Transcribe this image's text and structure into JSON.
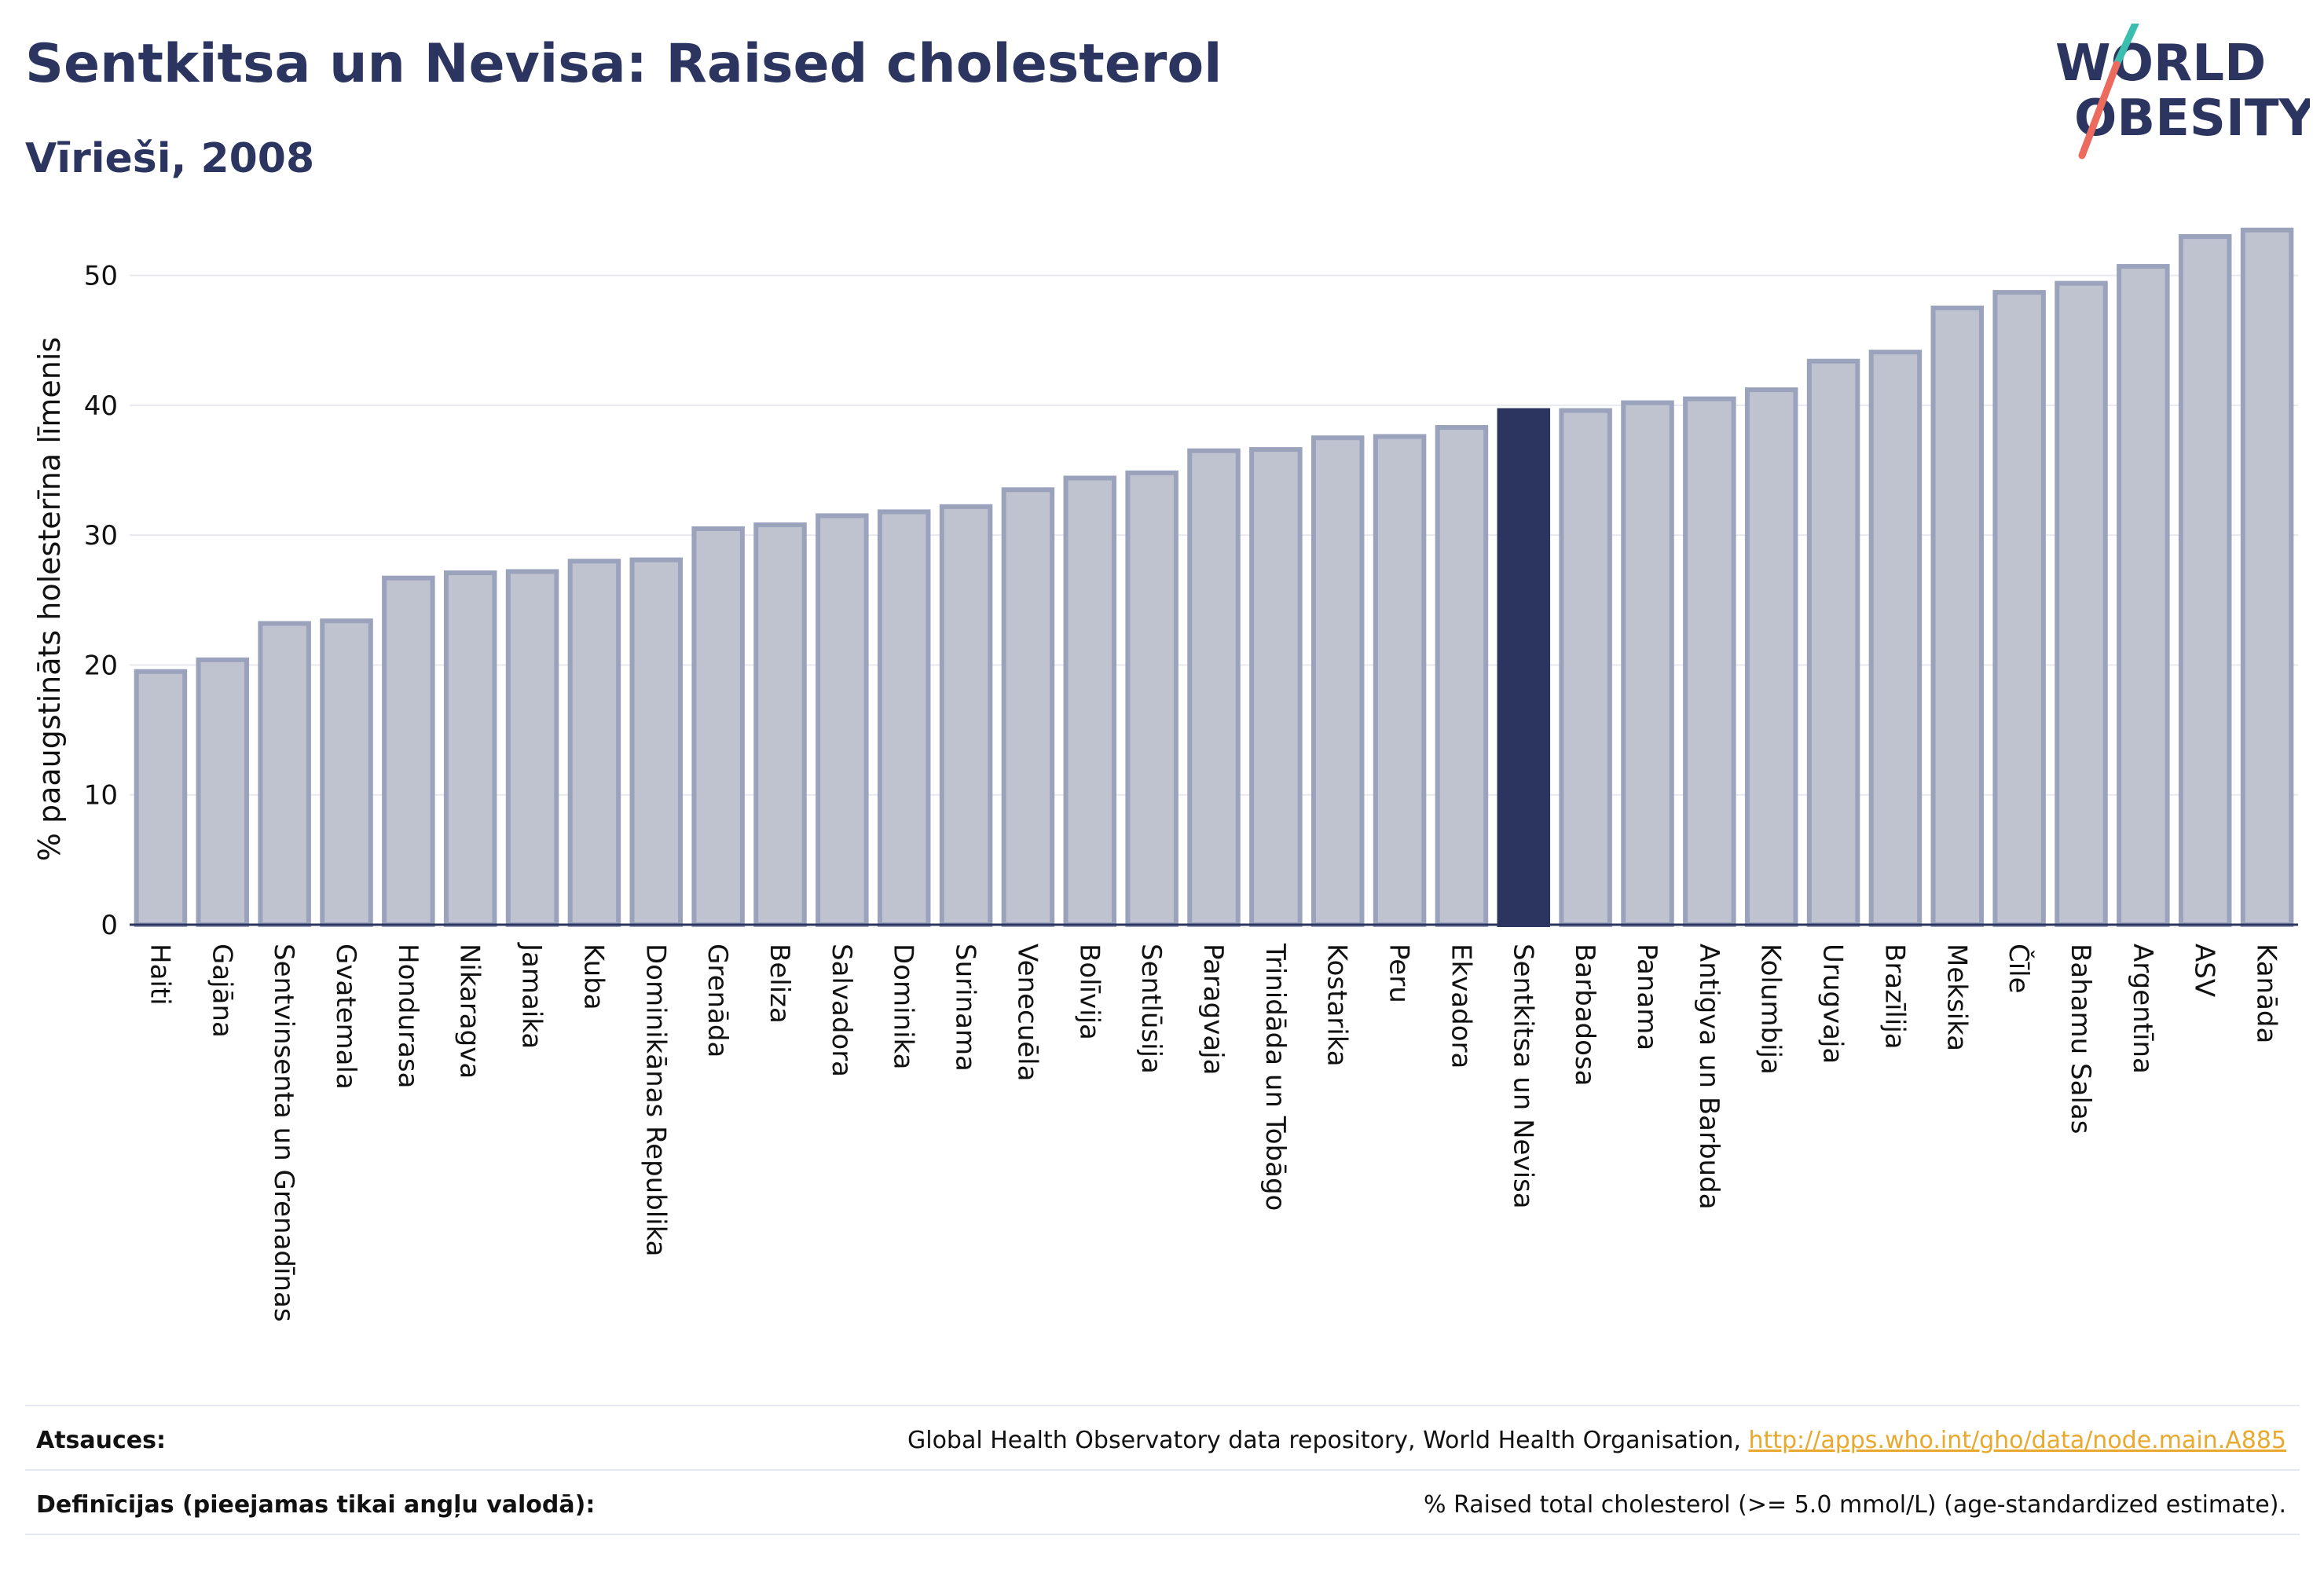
{
  "header": {
    "title": "Sentkitsa un Nevisa: Raised cholesterol",
    "subtitle": "Vīrieši, 2008"
  },
  "logo": {
    "line1": "WORLD",
    "line2": "OBESITY"
  },
  "chart_data": {
    "type": "bar",
    "ylabel": "% paaugstināts holesterīna līmenis",
    "ylim": [
      0,
      55
    ],
    "yticks": [
      0,
      10,
      20,
      30,
      40,
      50
    ],
    "grid": true,
    "highlight": "Sentkitsa un Nevisa",
    "categories": [
      "Haiti",
      "Gajāna",
      "Sentvinsenta un Grenadīnas",
      "Gvatemala",
      "Hondurasa",
      "Nikaragva",
      "Jamaika",
      "Kuba",
      "Dominikānas Republika",
      "Grenāda",
      "Beliza",
      "Salvadora",
      "Dominika",
      "Surinama",
      "Venecuēla",
      "Bolīvija",
      "Sentlūsija",
      "Paragvaja",
      "Trinidāda un Tobāgo",
      "Kostarika",
      "Peru",
      "Ekvadora",
      "Sentkitsa un Nevisa",
      "Barbadosa",
      "Panama",
      "Antigva un Barbuda",
      "Kolumbija",
      "Urugvaja",
      "Brazīlija",
      "Meksika",
      "Čīle",
      "Bahamu Salas",
      "Argentīna",
      "ASV",
      "Kanāda"
    ],
    "values": [
      19.5,
      20.4,
      23.2,
      23.4,
      26.7,
      27.1,
      27.2,
      28.0,
      28.1,
      30.5,
      30.8,
      31.5,
      31.8,
      32.2,
      33.5,
      34.4,
      34.8,
      36.5,
      36.6,
      37.5,
      37.6,
      38.3,
      39.6,
      39.6,
      40.2,
      40.5,
      41.2,
      43.4,
      44.1,
      47.5,
      48.7,
      49.4,
      50.7,
      53.0,
      53.5
    ],
    "colors": {
      "bar": "#bfc3d0",
      "bar_stroke": "#9ba2bb",
      "highlight": "#2b3560"
    }
  },
  "footer": {
    "sources_label": "Atsauces:",
    "sources_text": "Global Health Observatory data repository, World Health Organisation,",
    "sources_link": "http://apps.who.int/gho/data/node.main.A885",
    "definitions_label": "Definīcijas (pieejamas tikai angļu valodā):",
    "definitions_text": "% Raised total cholesterol (>= 5.0 mmol/L) (age-standardized estimate)."
  }
}
